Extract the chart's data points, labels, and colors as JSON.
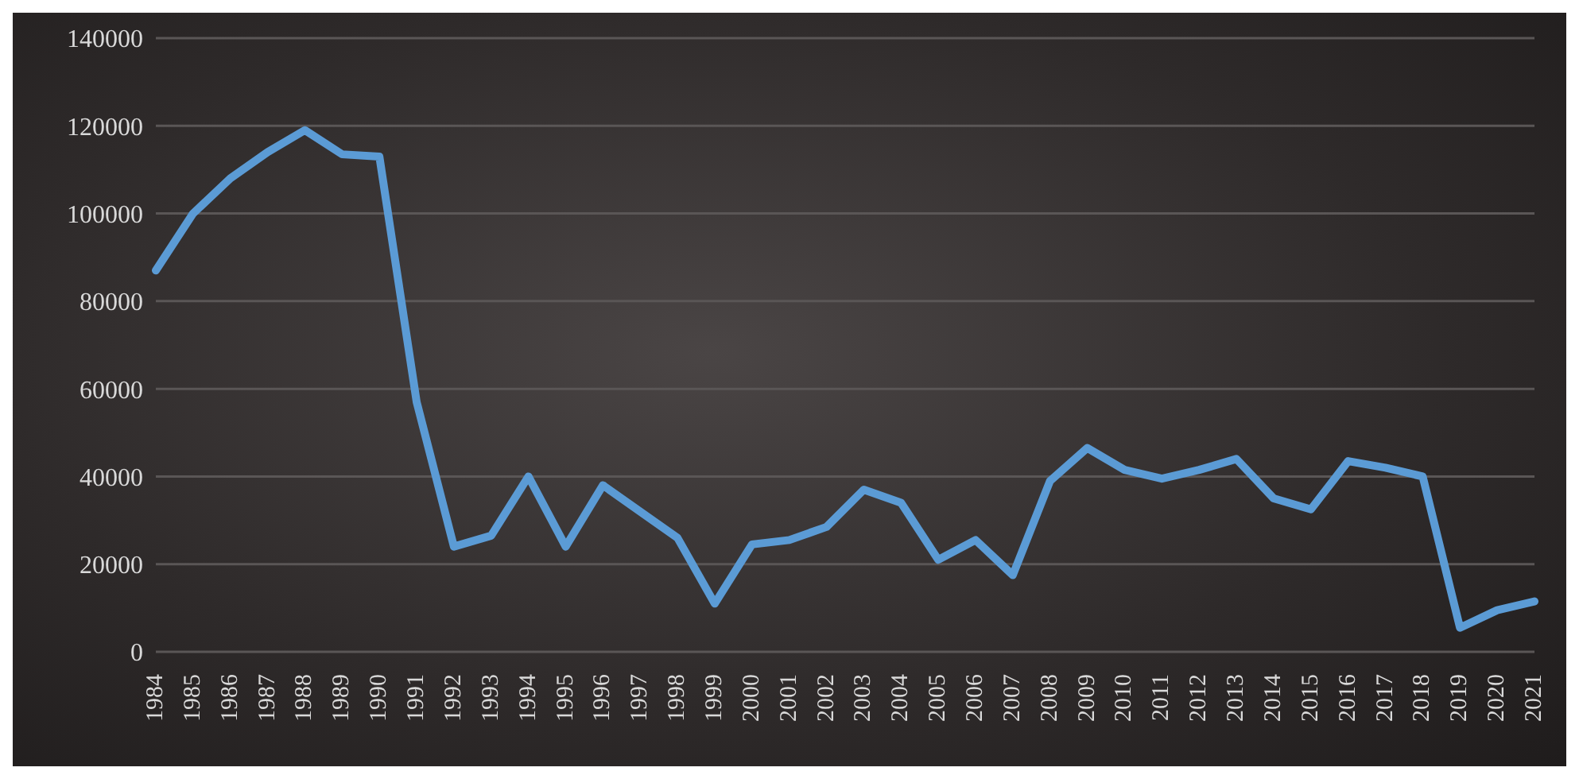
{
  "chart_data": {
    "type": "line",
    "categories": [
      "1984",
      "1985",
      "1986",
      "1987",
      "1988",
      "1989",
      "1990",
      "1991",
      "1992",
      "1993",
      "1994",
      "1995",
      "1996",
      "1997",
      "1998",
      "1999",
      "2000",
      "2001",
      "2002",
      "2003",
      "2004",
      "2005",
      "2006",
      "2007",
      "2008",
      "2009",
      "2010",
      "2011",
      "2012",
      "2013",
      "2014",
      "2015",
      "2016",
      "2017",
      "2018",
      "2019",
      "2020",
      "2021"
    ],
    "series": [
      {
        "color": "#5b9bd5",
        "values": [
          87000,
          100000,
          108000,
          114000,
          119000,
          113500,
          113000,
          57000,
          24000,
          26500,
          40000,
          24000,
          38000,
          32000,
          26000,
          11000,
          24500,
          25500,
          28500,
          37000,
          34000,
          21000,
          25500,
          17500,
          39000,
          46500,
          41500,
          39500,
          41500,
          44000,
          35000,
          32500,
          43500,
          42000,
          40000,
          5500,
          9500,
          11500
        ]
      }
    ],
    "ylim": [
      0,
      140000
    ],
    "yticks": [
      0,
      20000,
      40000,
      60000,
      80000,
      100000,
      120000,
      140000
    ],
    "grid": "y",
    "marker": "none",
    "line_style": "solid",
    "legend": false
  }
}
